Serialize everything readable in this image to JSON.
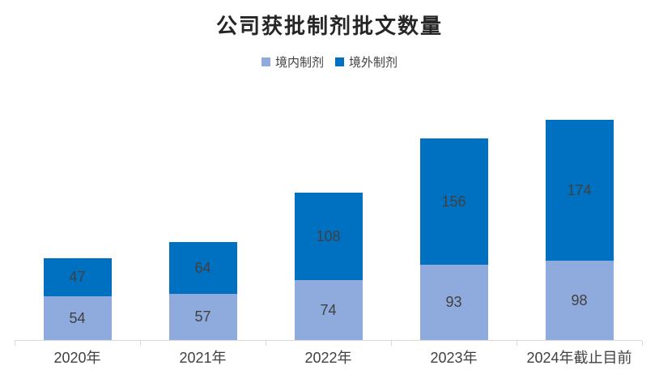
{
  "chart_data": {
    "type": "bar",
    "stacked": true,
    "title": "公司获批制剂批文数量",
    "categories": [
      "2020年",
      "2021年",
      "2022年",
      "2023年",
      "2024年截止目前"
    ],
    "series": [
      {
        "name": "境内制剂",
        "color": "#8FAADC",
        "values": [
          54,
          57,
          74,
          93,
          98
        ]
      },
      {
        "name": "境外制剂",
        "color": "#0070C0",
        "values": [
          47,
          64,
          108,
          156,
          174
        ]
      }
    ],
    "totals": [
      101,
      121,
      182,
      249,
      272
    ],
    "ylim": [
      0,
      300
    ],
    "grid": false,
    "legend_position": "top",
    "axis_line_color": "#D9D9D9",
    "label_color": "#404040",
    "title_color": "#262626"
  }
}
